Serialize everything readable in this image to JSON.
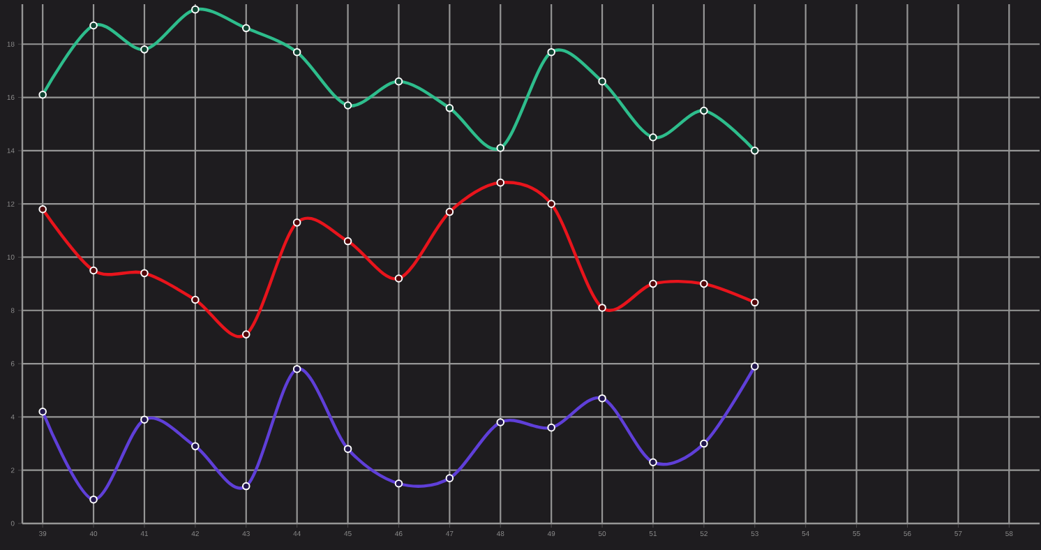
{
  "chart_data": {
    "type": "line",
    "x": [
      39,
      40,
      41,
      42,
      43,
      44,
      45,
      46,
      47,
      48,
      49,
      50,
      51,
      52,
      53
    ],
    "series": [
      {
        "color": "#2ebd8c",
        "values": [
          16.1,
          18.7,
          17.8,
          19.3,
          18.6,
          17.7,
          15.7,
          16.6,
          15.6,
          14.1,
          17.7,
          16.6,
          14.5,
          15.5,
          14.0
        ]
      },
      {
        "color": "#e8141c",
        "values": [
          11.8,
          9.5,
          9.4,
          8.4,
          7.1,
          11.3,
          10.6,
          9.2,
          11.7,
          12.8,
          12.0,
          8.1,
          9.0,
          9.0,
          8.3
        ]
      },
      {
        "color": "#5f3fd8",
        "values": [
          4.2,
          0.9,
          3.9,
          2.9,
          1.4,
          5.8,
          2.8,
          1.5,
          1.7,
          3.8,
          3.6,
          4.7,
          2.3,
          3.0,
          5.9
        ]
      }
    ],
    "xlim": [
      38.6,
      58.6
    ],
    "ylim": [
      0,
      19.5
    ],
    "xticks": [
      39,
      40,
      41,
      42,
      43,
      44,
      45,
      46,
      47,
      48,
      49,
      50,
      51,
      52,
      53,
      54,
      55,
      56,
      57,
      58
    ],
    "yticks": [
      0,
      2,
      4,
      6,
      8,
      10,
      12,
      14,
      16,
      18
    ],
    "grid": true,
    "marker": "circle",
    "line_style": "solid"
  }
}
